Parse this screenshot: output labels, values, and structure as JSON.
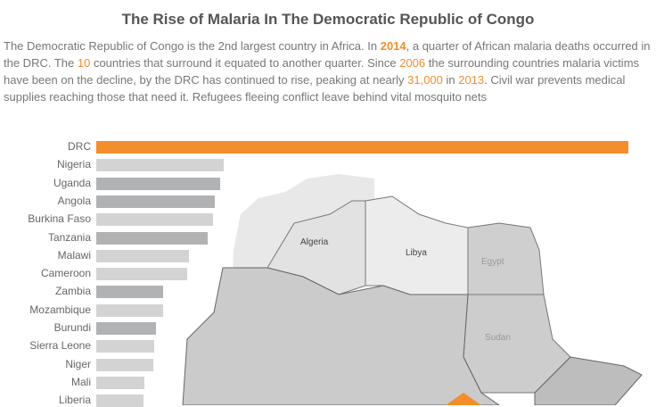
{
  "title": "The Rise of Malaria In The Democratic Republic of Congo",
  "description": {
    "p1": "The Democratic Republic of Congo is the 2nd largest country in Africa. In ",
    "y2014": "2014",
    "p2": ", a quarter of African malaria deaths occurred in the DRC. The ",
    "n10": "10",
    "p3": " countries that surround it equated to another quarter. Since ",
    "y2006": "2006",
    "p4": " the surrounding countries malaria victims have been on the decline, by the DRC has continued to rise, peaking at nearly ",
    "n31000": "31,000",
    "p5": " in ",
    "y2013": "2013",
    "p6": ". Civil war prevents medical supplies reaching those that need it. Refugees fleeing conflict leave behind vital mosquito nets"
  },
  "colors": {
    "highlight": "#f28e2b",
    "neighbor": "#b0b2b4",
    "other": "#d3d3d3"
  },
  "chart_data": {
    "type": "bar",
    "orientation": "horizontal",
    "categories": [
      "DRC",
      "Nigeria",
      "Uganda",
      "Angola",
      "Burkina Faso",
      "Tanzania",
      "Malawi",
      "Cameroon",
      "Zambia",
      "Mozambique",
      "Burundi",
      "Sierra Leone",
      "Niger",
      "Mali",
      "Liberia"
    ],
    "values": [
      31000,
      7400,
      7200,
      6900,
      6800,
      6500,
      5400,
      5300,
      3900,
      3900,
      3500,
      3400,
      3300,
      2800,
      2750
    ],
    "groups": [
      "highlight",
      "other",
      "neighbor",
      "neighbor",
      "other",
      "neighbor",
      "other",
      "other",
      "neighbor",
      "other",
      "neighbor",
      "other",
      "other",
      "other",
      "other"
    ]
  },
  "map_labels": [
    "Algeria",
    "Libya",
    "Egypt",
    "Sudan"
  ]
}
